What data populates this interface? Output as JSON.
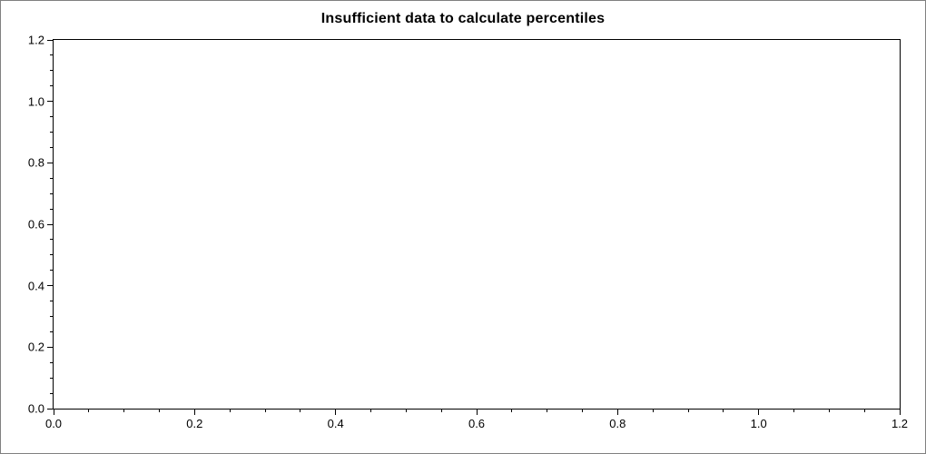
{
  "title": "Insufficient data to calculate percentiles",
  "chart_data": {
    "type": "scatter",
    "title": "Insufficient data to calculate percentiles",
    "series": [],
    "xlabel": "",
    "ylabel": "",
    "xlim": [
      0.0,
      1.2
    ],
    "ylim": [
      0.0,
      1.2
    ],
    "x_ticks": [
      0.0,
      0.2,
      0.4,
      0.6,
      0.8,
      1.0,
      1.2
    ],
    "y_ticks": [
      0.0,
      0.2,
      0.4,
      0.6,
      0.8,
      1.0,
      1.2
    ],
    "x_tick_labels": [
      "0.0",
      "0.2",
      "0.4",
      "0.6",
      "0.8",
      "1.0",
      "1.2"
    ],
    "y_tick_labels": [
      "0.0",
      "0.2",
      "0.4",
      "0.6",
      "0.8",
      "1.0",
      "1.2"
    ],
    "major_step": 0.2,
    "minor_step": 0.05,
    "grid": false,
    "legend": null,
    "plot_background": "#ffffff",
    "axis_color": "#000000",
    "note_empty_plot": true
  }
}
